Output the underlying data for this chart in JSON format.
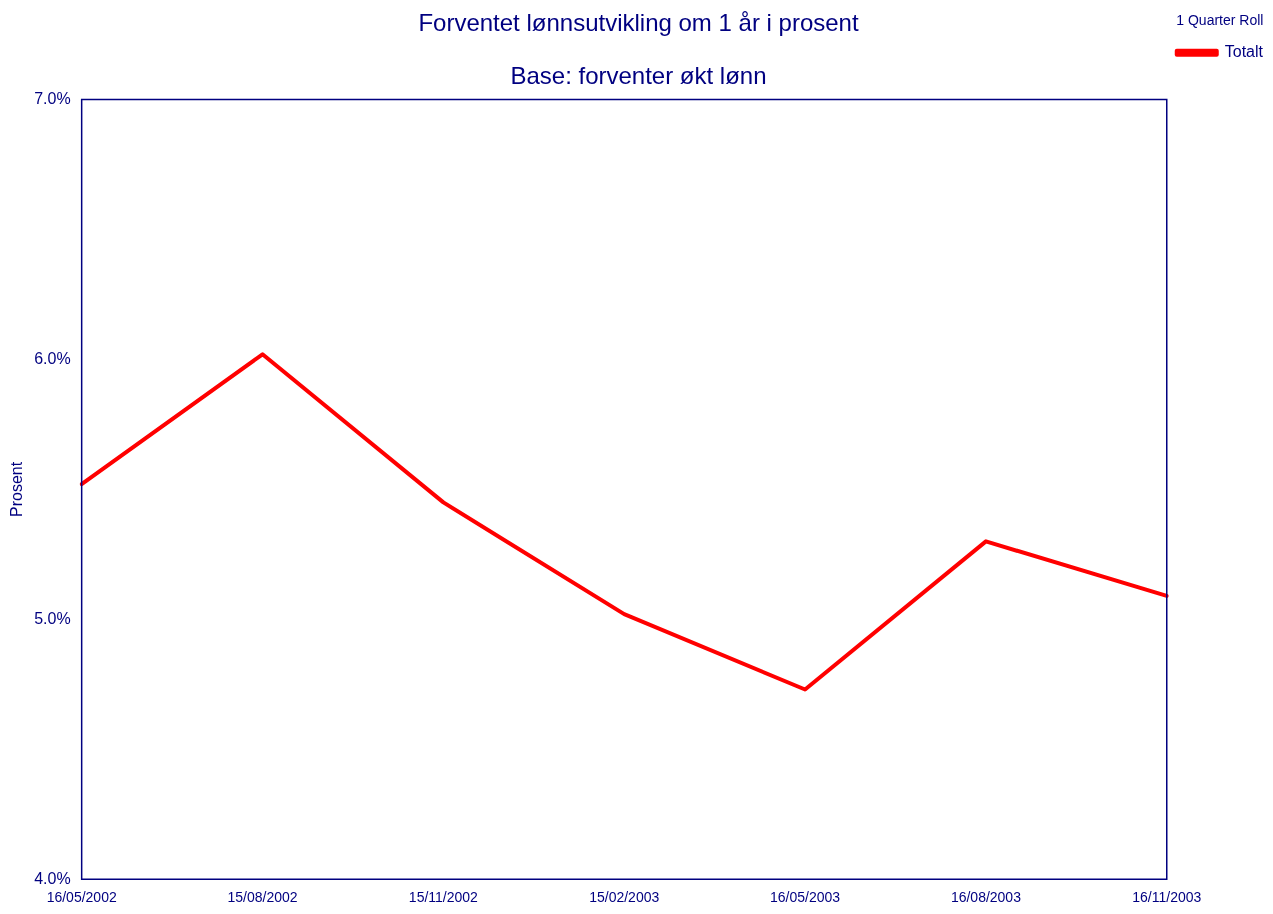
{
  "chart_data": {
    "type": "line",
    "title": "Forventet lønnsutvikling om 1 år i prosent",
    "subtitle": "Base: forventer økt lønn",
    "ylabel": "Prosent",
    "legend_title": "1 Quarter Roll",
    "legend": "top right",
    "grid": false,
    "marker": "none",
    "line_style": "solid",
    "categories": [
      "16/05/2002",
      "15/08/2002",
      "15/11/2002",
      "15/02/2003",
      "16/05/2003",
      "16/08/2003",
      "16/11/2003"
    ],
    "ylim": [
      4,
      7
    ],
    "yticks": [
      {
        "value": 4,
        "label": "4.0%"
      },
      {
        "value": 5,
        "label": "5.0%"
      },
      {
        "value": 6,
        "label": "6.0%"
      },
      {
        "value": 7,
        "label": "7.0%"
      }
    ],
    "series": [
      {
        "name": "Totalt",
        "color": "#ff0000",
        "values": [
          5.52,
          6.02,
          5.45,
          5.02,
          4.73,
          5.3,
          5.09
        ]
      }
    ]
  }
}
